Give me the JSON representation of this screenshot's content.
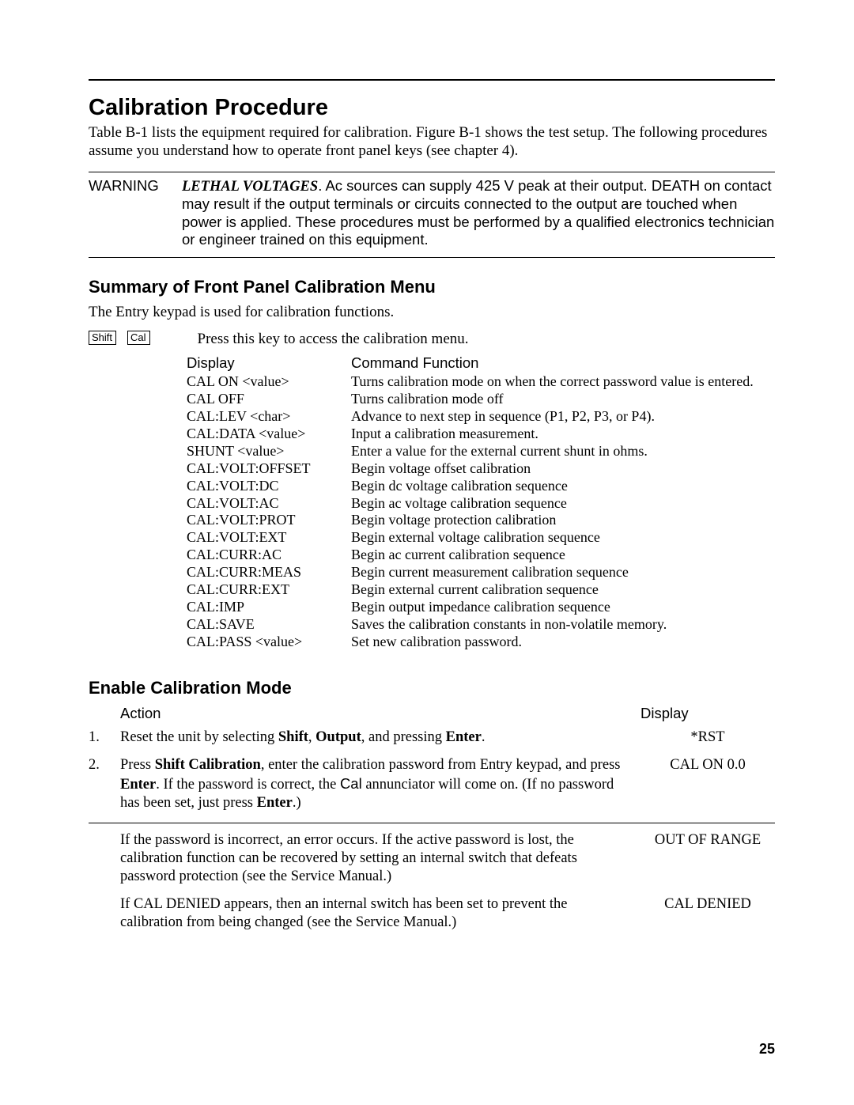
{
  "title": "Calibration Procedure",
  "intro": "Table B-1 lists the equipment required for calibration. Figure B-1 shows the test setup. The following procedures assume you understand how to operate front panel keys (see chapter 4).",
  "warning": {
    "label": "WARNING",
    "lethal": "LETHAL VOLTAGES",
    "body_after": ". Ac sources can supply 425 V peak at  their output. DEATH on contact may result if the output terminals or circuits connected to the output are touched when power is applied. These procedures must be performed by a qualified electronics technician or engineer trained on this equipment."
  },
  "summary": {
    "heading": "Summary of Front Panel Calibration Menu",
    "lead": "The Entry keypad is used for calibration functions.",
    "keys": {
      "shift": "Shift",
      "cal": "Cal"
    },
    "key_desc": "Press this key to access the calibration menu.",
    "headers": {
      "display": "Display",
      "func": "Command Function"
    },
    "rows": [
      {
        "display": "CAL ON <value>",
        "func": "Turns calibration mode on when the correct password value is entered."
      },
      {
        "display": "CAL OFF",
        "func": "Turns calibration mode off"
      },
      {
        "display": "CAL:LEV <char>",
        "func": "Advance to next step in sequence (P1, P2, P3,  or P4)."
      },
      {
        "display": "CAL:DATA <value>",
        "func": "Input a calibration measurement."
      },
      {
        "display": "SHUNT <value>",
        "func": "Enter a value for the external current shunt in ohms."
      },
      {
        "display": "CAL:VOLT:OFFSET",
        "func": "Begin voltage offset calibration"
      },
      {
        "display": "CAL:VOLT:DC",
        "func": "Begin dc voltage calibration sequence"
      },
      {
        "display": "CAL:VOLT:AC",
        "func": "Begin ac voltage calibration sequence"
      },
      {
        "display": "CAL:VOLT:PROT",
        "func": "Begin voltage protection calibration"
      },
      {
        "display": "CAL:VOLT:EXT",
        "func": "Begin external voltage calibration sequence"
      },
      {
        "display": "CAL:CURR:AC",
        "func": "Begin ac current calibration sequence"
      },
      {
        "display": "CAL:CURR:MEAS",
        "func": "Begin current measurement calibration sequence"
      },
      {
        "display": "CAL:CURR:EXT",
        "func": "Begin external current calibration sequence"
      },
      {
        "display": "CAL:IMP",
        "func": "Begin output impedance calibration sequence"
      },
      {
        "display": "CAL:SAVE",
        "func": "Saves the calibration constants in non-volatile memory."
      },
      {
        "display": "CAL:PASS <value>",
        "func": "Set new calibration password."
      }
    ]
  },
  "enable": {
    "heading": "Enable Calibration Mode",
    "headers": {
      "action": "Action",
      "display": "Display"
    },
    "rows": [
      {
        "num": "1.",
        "segments": [
          {
            "t": "Reset the unit by selecting "
          },
          {
            "t": "Shift",
            "b": true
          },
          {
            "t": ", "
          },
          {
            "t": "Output",
            "b": true
          },
          {
            "t": ", and pressing "
          },
          {
            "t": "Enter",
            "b": true
          },
          {
            "t": "."
          }
        ],
        "display": "*RST"
      },
      {
        "num": "2.",
        "segments": [
          {
            "t": "Press "
          },
          {
            "t": "Shift Calibration",
            "b": true
          },
          {
            "t": ", enter the calibration password from Entry keypad, and press "
          },
          {
            "t": "Enter",
            "b": true
          },
          {
            "t": ". If the password is correct, the "
          },
          {
            "t": "Cal",
            "sans": true
          },
          {
            "t": " annunciator will come on. (If no password has been set, just press "
          },
          {
            "t": "Enter",
            "b": true
          },
          {
            "t": ".)"
          }
        ],
        "display": "CAL ON  0.0"
      },
      {
        "num": "",
        "segments": [
          {
            "t": "If the password is incorrect, an error occurs. If the active password is lost, the calibration function can be recovered by setting an internal switch that defeats password protection (see the Service Manual.)"
          }
        ],
        "display": "OUT OF RANGE"
      },
      {
        "num": "",
        "segments": [
          {
            "t": "If CAL DENIED appears, then an internal switch has been set to prevent the calibration from being changed (see the Service Manual.)"
          }
        ],
        "display": "CAL DENIED"
      }
    ]
  },
  "page_number": "25"
}
